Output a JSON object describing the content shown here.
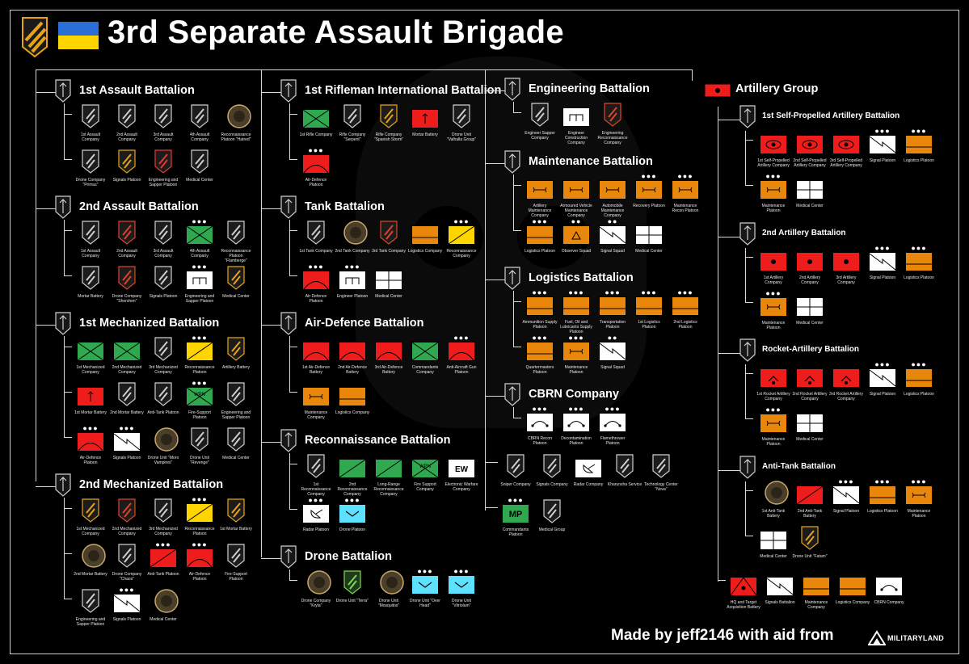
{
  "header": {
    "title": "3rd Separate Assault Brigade",
    "flag_colors": {
      "top": "#2a6fd6",
      "bottom": "#ffd500"
    }
  },
  "footer": {
    "credit": "Made by jeff2146 with aid from",
    "logo_text": "MILITARYLAND"
  },
  "colors": {
    "infantry": "#2fa84f",
    "artillery": "#ef1c1c",
    "armour": "#ffd500",
    "support": "#e8870c",
    "recon_sky": "#5ee0ff",
    "plain": "#ffffff"
  },
  "battalions": [
    {
      "name": "1st Assault Battalion",
      "rows": [
        [
          {
            "label": "1st Assault Company",
            "kind": "insignia"
          },
          {
            "label": "2nd Assault Company",
            "kind": "insignia"
          },
          {
            "label": "3rd Assault Company",
            "kind": "insignia"
          },
          {
            "label": "4th Assault Company",
            "kind": "insignia"
          },
          {
            "label": "Reconnaissance Platoon \"Hatred\"",
            "kind": "insignia-round"
          }
        ],
        [
          {
            "label": "Drone Company \"Primus\"",
            "kind": "insignia"
          },
          {
            "label": "Signals Platoon",
            "kind": "insignia-yellow"
          },
          {
            "label": "Engineering and Sapper Platoon",
            "kind": "insignia-skull"
          },
          {
            "label": "Medical Center",
            "kind": "insignia"
          }
        ]
      ]
    },
    {
      "name": "2nd Assault Battalion",
      "rows": [
        [
          {
            "label": "1st Assault Company",
            "kind": "insignia"
          },
          {
            "label": "2nd Assault Company",
            "kind": "insignia-red"
          },
          {
            "label": "3rd Assault Company",
            "kind": "insignia"
          },
          {
            "label": "4th Assault Company",
            "kind": "green-x",
            "dots": "●●●"
          },
          {
            "label": "Reconnaissance Platoon \"Flamberge\"",
            "kind": "insignia"
          }
        ],
        [
          {
            "label": "Mortar Battery",
            "kind": "insignia"
          },
          {
            "label": "Drone Company \"Shershen\"",
            "kind": "insignia-red"
          },
          {
            "label": "Signals Platoon",
            "kind": "insignia"
          },
          {
            "label": "Engineering and Sapper Platoon",
            "kind": "white-eng",
            "dots": "●●●"
          },
          {
            "label": "Medical Center",
            "kind": "insignia-yellow"
          }
        ]
      ]
    },
    {
      "name": "1st Mechanized Battalion",
      "rows": [
        [
          {
            "label": "1st Mechanized Company",
            "kind": "green-x"
          },
          {
            "label": "2nd Mechanized Company",
            "kind": "green-x"
          },
          {
            "label": "3rd Mechanized Company",
            "kind": "insignia"
          },
          {
            "label": "Reconnaissance Platoon",
            "kind": "yellow-diag",
            "dots": "●●●"
          },
          {
            "label": "Artillery Battery",
            "kind": "insignia-yellow"
          }
        ],
        [
          {
            "label": "1st Mortar Battery",
            "kind": "red-arrow"
          },
          {
            "label": "2nd Mortar Battery",
            "kind": "insignia"
          },
          {
            "label": "Anti-Tank Platoon",
            "kind": "insignia"
          },
          {
            "label": "Fire-Support Platoon",
            "kind": "green-wpn",
            "dots": "●●●"
          },
          {
            "label": "Engineering and Sapper Platoon",
            "kind": "insignia"
          }
        ],
        [
          {
            "label": "Air-Defence Platoon",
            "kind": "red-dome",
            "dots": "●●●"
          },
          {
            "label": "Signals Platoon",
            "kind": "white-signal",
            "dots": "●●●"
          },
          {
            "label": "Drone Unit \"Moro Vampires\"",
            "kind": "insignia-round"
          },
          {
            "label": "Drone Unit \"Revenge\"",
            "kind": "insignia"
          },
          {
            "label": "Medical Center",
            "kind": "insignia"
          }
        ]
      ]
    },
    {
      "name": "2nd Mechanized Battalion",
      "rows": [
        [
          {
            "label": "1st Mechanized Company",
            "kind": "insignia-yellow"
          },
          {
            "label": "2nd Mechanized Company",
            "kind": "insignia-red"
          },
          {
            "label": "3rd Mechanized Company",
            "kind": "insignia"
          },
          {
            "label": "Reconnaissance Platoon",
            "kind": "yellow-diag",
            "dots": "●●●"
          },
          {
            "label": "1st Mortar Battery",
            "kind": "insignia-yellow"
          }
        ],
        [
          {
            "label": "2nd Mortar Battery",
            "kind": "insignia-round"
          },
          {
            "label": "Drone Company \"Chaos\"",
            "kind": "insignia"
          },
          {
            "label": "Anti-Tank Platoon",
            "kind": "red-slash",
            "dots": "●●●"
          },
          {
            "label": "Air-Defence Platoon",
            "kind": "red-dome",
            "dots": "●●●"
          },
          {
            "label": "Fire-Support Platoon",
            "kind": "insignia"
          }
        ],
        [
          {
            "label": "Engineering and Sapper Platoon",
            "kind": "insignia"
          },
          {
            "label": "Signals Platoon",
            "kind": "white-signal",
            "dots": "●●●"
          },
          {
            "label": "Medical Center",
            "kind": "insignia-round"
          }
        ]
      ]
    },
    {
      "name": "1st Rifleman International Battalion",
      "rows": [
        [
          {
            "label": "1st Rifle Company",
            "kind": "green-x"
          },
          {
            "label": "Rifle Company \"Serpent\"",
            "kind": "insignia"
          },
          {
            "label": "Rifle Company \"Spanish Storm\"",
            "kind": "insignia-yellow"
          },
          {
            "label": "Mortar Battery",
            "kind": "red-arrow"
          },
          {
            "label": "Drone Unit \"Valhalla Group\"",
            "kind": "insignia"
          }
        ],
        [
          {
            "label": "Air-Defence Platoon",
            "kind": "red-dome",
            "dots": "●●●"
          }
        ]
      ]
    },
    {
      "name": "Tank Battalion",
      "rows": [
        [
          {
            "label": "1st Tank Company",
            "kind": "insignia"
          },
          {
            "label": "2nd Tank Company",
            "kind": "insignia-round"
          },
          {
            "label": "3rd Tank Company",
            "kind": "insignia-red"
          },
          {
            "label": "Logistics Company",
            "kind": "orange-bar"
          },
          {
            "label": "Reconnaissance Company",
            "kind": "yellow-diag",
            "dots": "●●●"
          }
        ],
        [
          {
            "label": "Air-Defence Platoon",
            "kind": "red-dome",
            "dots": "●●●"
          },
          {
            "label": "Engineer Platoon",
            "kind": "white-eng",
            "dots": "●●●"
          },
          {
            "label": "Medical Center",
            "kind": "white-cross"
          }
        ]
      ]
    },
    {
      "name": "Air-Defence Battalion",
      "rows": [
        [
          {
            "label": "1st Air-Defence Battery",
            "kind": "red-dome"
          },
          {
            "label": "2nd Air-Defence Battery",
            "kind": "red-dome"
          },
          {
            "label": "3rd Air-Defence Battery",
            "kind": "red-dome"
          },
          {
            "label": "Commandants Company",
            "kind": "green-x"
          },
          {
            "label": "Anti-Aircraft Gun Platoon",
            "kind": "red-dome",
            "dots": "●●●"
          }
        ],
        [
          {
            "label": "Maintenance Company",
            "kind": "orange-maint"
          },
          {
            "label": "Logistics Company",
            "kind": "orange-bar"
          }
        ]
      ]
    },
    {
      "name": "Reconnaissance Battalion",
      "rows": [
        [
          {
            "label": "1st Reconnaissance Company",
            "kind": "insignia"
          },
          {
            "label": "2nd Reconnaissance Company",
            "kind": "green-diag"
          },
          {
            "label": "Long-Range Reconnaissance Company",
            "kind": "green-diag"
          },
          {
            "label": "Fire Support Company",
            "kind": "green-wpn"
          },
          {
            "label": "Electronic Warfare Company",
            "kind": "white-ew"
          }
        ],
        [
          {
            "label": "Radar Platoon",
            "kind": "white-radar",
            "dots": "●●●"
          },
          {
            "label": "Drone Platoon",
            "kind": "sky-v",
            "dots": "●●●"
          }
        ]
      ]
    },
    {
      "name": "Drone Battalion",
      "rows": [
        [
          {
            "label": "Drone Company \"Kryla\"",
            "kind": "insignia-round"
          },
          {
            "label": "Drone Unit \"Terra\"",
            "kind": "insignia-green"
          },
          {
            "label": "Drone Unit \"Mosquitos\"",
            "kind": "insignia-round"
          },
          {
            "label": "Drone Unit \"Over Head\"",
            "kind": "sky-v",
            "dots": "●●●"
          },
          {
            "label": "Drone Unit \"Vitriolum\"",
            "kind": "sky-v",
            "dots": "●●●"
          }
        ]
      ]
    },
    {
      "name": "Engineering Battalion",
      "rows": [
        [
          {
            "label": "Engineer Sapper Company",
            "kind": "insignia"
          },
          {
            "label": "Engineer Construction Company",
            "kind": "white-eng"
          },
          {
            "label": "Engineering Reconnaissance Company",
            "kind": "insignia-red"
          }
        ]
      ]
    },
    {
      "name": "Maintenance Battalion",
      "rows": [
        [
          {
            "label": "Artillery Maintenance Company",
            "kind": "orange-maint"
          },
          {
            "label": "Armoured Vehicle Maintenance Company",
            "kind": "orange-maint"
          },
          {
            "label": "Automobile Maintenance Company",
            "kind": "orange-maint"
          },
          {
            "label": "Recovery Platoon",
            "kind": "orange-maint",
            "dots": "●●●"
          },
          {
            "label": "Maintenance Recon Platoon",
            "kind": "orange-maint",
            "dots": "●●●"
          }
        ],
        [
          {
            "label": "Logistics Platoon",
            "kind": "orange-bar",
            "dots": "●●●"
          },
          {
            "label": "Observer Squad",
            "kind": "orange-tri",
            "dots": "●●"
          },
          {
            "label": "Signal Squad",
            "kind": "white-signal",
            "dots": "●●"
          },
          {
            "label": "Medical Center",
            "kind": "white-cross"
          }
        ]
      ]
    },
    {
      "name": "Logistics Battalion",
      "rows": [
        [
          {
            "label": "Ammunition Supply Platoon",
            "kind": "orange-bar",
            "dots": "●●●"
          },
          {
            "label": "Fuel, Oil and Lubricants Supply Platoon",
            "kind": "orange-bar",
            "dots": "●●●"
          },
          {
            "label": "Transportation Platoon",
            "kind": "orange-bar",
            "dots": "●●●"
          },
          {
            "label": "1st Logistics Platoon",
            "kind": "orange-bar",
            "dots": "●●●"
          },
          {
            "label": "2nd Logistics Platoon",
            "kind": "orange-bar",
            "dots": "●●●"
          }
        ],
        [
          {
            "label": "Quartermasters Platoon",
            "kind": "orange-bar",
            "dots": "●●●"
          },
          {
            "label": "Maintenance Platoon",
            "kind": "orange-maint",
            "dots": "●●●"
          },
          {
            "label": "Signal Squad",
            "kind": "white-signal",
            "dots": "●●"
          }
        ]
      ]
    },
    {
      "name": "CBRN Company",
      "rows": [
        [
          {
            "label": "CBRN Recon Platoon",
            "kind": "white-cbrn",
            "dots": "●●●"
          },
          {
            "label": "Decontamination Platoon",
            "kind": "white-cbrn",
            "dots": "●●●"
          },
          {
            "label": "Flamethrower Platoon",
            "kind": "white-cbrn",
            "dots": "●●●"
          }
        ]
      ]
    },
    {
      "name": "",
      "rows": [
        [
          {
            "label": "Sniper Company",
            "kind": "insignia"
          },
          {
            "label": "Signals Company",
            "kind": "insignia"
          },
          {
            "label": "Radar Company",
            "kind": "white-radar"
          },
          {
            "label": "Kharunsha Service",
            "kind": "insignia"
          },
          {
            "label": "Technology Center \"Nova\"",
            "kind": "insignia"
          }
        ],
        [
          {
            "label": "Commandants Platoon",
            "kind": "green-mp",
            "dots": "●●●"
          },
          {
            "label": "Medical Group",
            "kind": "insignia"
          }
        ]
      ]
    },
    {
      "name": "Artillery Group",
      "rows": []
    },
    {
      "name": "1st Self-Propelled Artillery Battalion",
      "rows": [
        [
          {
            "label": "1st Self-Propelled Artillery Company",
            "kind": "red-sp"
          },
          {
            "label": "2nd Self-Propelled Artillery Company",
            "kind": "red-sp"
          },
          {
            "label": "3rd Self-Propelled Artillery Company",
            "kind": "red-sp"
          },
          {
            "label": "Signal Platoon",
            "kind": "white-signal",
            "dots": "●●●"
          },
          {
            "label": "Logistics Platoon",
            "kind": "orange-bar",
            "dots": "●●●"
          }
        ],
        [
          {
            "label": "Maintenance Platoon",
            "kind": "orange-maint",
            "dots": "●●●"
          },
          {
            "label": "Medical Center",
            "kind": "white-cross"
          }
        ]
      ]
    },
    {
      "name": "2nd Artillery Battalion",
      "rows": [
        [
          {
            "label": "1st Artillery Company",
            "kind": "red-dot"
          },
          {
            "label": "2nd Artillery Company",
            "kind": "red-dot"
          },
          {
            "label": "3rd Artillery Company",
            "kind": "red-dot"
          },
          {
            "label": "Signal Platoon",
            "kind": "white-signal",
            "dots": "●●●"
          },
          {
            "label": "Logistics Platoon",
            "kind": "orange-bar",
            "dots": "●●●"
          }
        ],
        [
          {
            "label": "Maintenance Platoon",
            "kind": "orange-maint",
            "dots": "●●●"
          },
          {
            "label": "Medical Center",
            "kind": "white-cross"
          }
        ]
      ]
    },
    {
      "name": "Rocket-Artillery Battalion",
      "rows": [
        [
          {
            "label": "1st Rocket Artillery Company",
            "kind": "red-rocket"
          },
          {
            "label": "2nd Rocket Artillery Company",
            "kind": "red-rocket"
          },
          {
            "label": "3rd Rocket Artillery Company",
            "kind": "red-rocket"
          },
          {
            "label": "Signal Platoon",
            "kind": "white-signal",
            "dots": "●●●"
          },
          {
            "label": "Logistics Platoon",
            "kind": "orange-bar",
            "dots": "●●●"
          }
        ],
        [
          {
            "label": "Maintenance Platoon",
            "kind": "orange-maint",
            "dots": "●●●"
          },
          {
            "label": "Medical Center",
            "kind": "white-cross"
          }
        ]
      ]
    },
    {
      "name": "Anti-Tank Battalion",
      "rows": [
        [
          {
            "label": "1st Anti-Tank Battery",
            "kind": "insignia-round"
          },
          {
            "label": "2nd Anti-Tank Battery",
            "kind": "red-slash"
          },
          {
            "label": "Signal Platoon",
            "kind": "white-signal",
            "dots": "●●●"
          },
          {
            "label": "Logistics Platoon",
            "kind": "orange-bar",
            "dots": "●●●"
          },
          {
            "label": "Maintenance Platoon",
            "kind": "orange-maint",
            "dots": "●●●"
          }
        ],
        [
          {
            "label": "Medical Center",
            "kind": "white-cross"
          },
          {
            "label": "Drone Unit \"Fatum\"",
            "kind": "insignia-yellow"
          }
        ]
      ]
    },
    {
      "name": "",
      "rows": [
        [
          {
            "label": "HQ and Target Acquisition Battery",
            "kind": "red-hq"
          },
          {
            "label": "Signals Battalion",
            "kind": "white-signal"
          },
          {
            "label": "Maintenance Company",
            "kind": "orange-bar"
          },
          {
            "label": "Logistics Company",
            "kind": "orange-bar"
          },
          {
            "label": "CBRN Company",
            "kind": "white-cbrn"
          }
        ]
      ]
    }
  ]
}
